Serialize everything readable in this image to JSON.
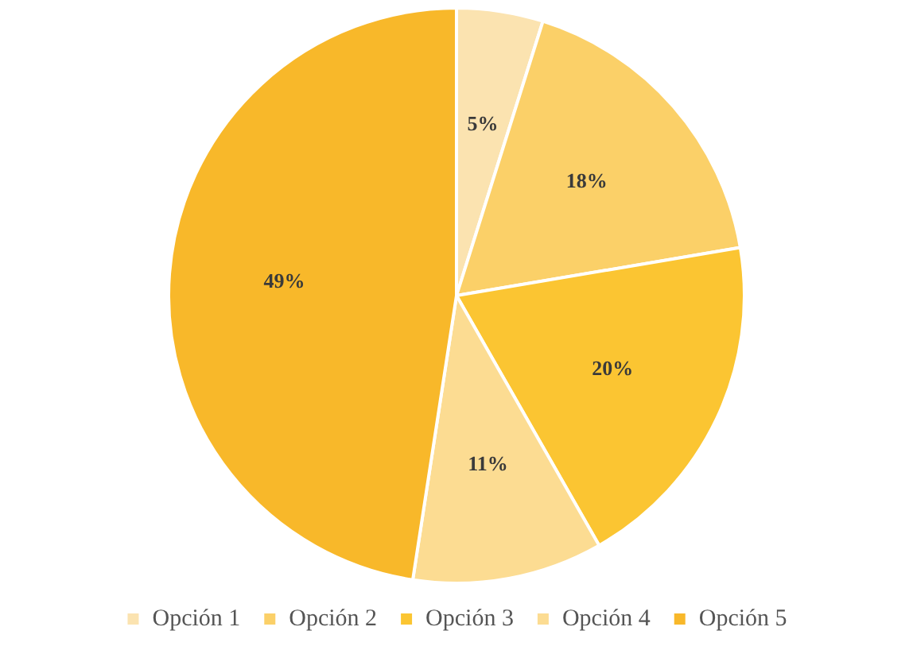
{
  "chart_data": {
    "type": "pie",
    "categories": [
      "Opción 1",
      "Opción 2",
      "Opción 3",
      "Opción 4",
      "Opción 5"
    ],
    "values": [
      5,
      18,
      20,
      11,
      49
    ],
    "colors": [
      "#fbe3b0",
      "#fbd068",
      "#fbc532",
      "#fcdc92",
      "#f8b82a"
    ],
    "value_labels": [
      "5%",
      "18%",
      "20%",
      "11%",
      "49%"
    ],
    "legend": "bottom"
  }
}
